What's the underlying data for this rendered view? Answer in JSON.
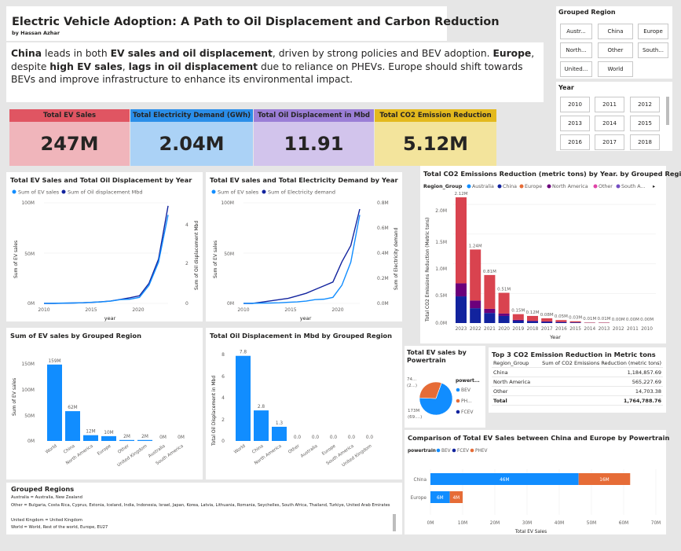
{
  "header": {
    "title": "Electric Vehicle Adoption: A Path to Oil Displacement and Carbon Reduction",
    "author": "by Hassan Azhar"
  },
  "description": {
    "p1": "China",
    "p2": " leads in both ",
    "p3": "EV sales and oil displacement",
    "p4": ", driven by strong policies and BEV adoption. ",
    "p5": "Europe",
    "p6": ", despite ",
    "p7": "high EV sales",
    "p8": ", ",
    "p9": "lags in oil displacement",
    "p10": " due to reliance on PHEVs. Europe should shift towards BEVs and improve infrastructure to enhance its environmental impact."
  },
  "filters": {
    "region": {
      "title": "Grouped Region",
      "options": [
        "Austr...",
        "China",
        "Europe",
        "North...",
        "Other",
        "South...",
        "United...",
        "World"
      ]
    },
    "year": {
      "title": "Year",
      "options": [
        "2010",
        "2011",
        "2012",
        "2013",
        "2014",
        "2015",
        "2016",
        "2017",
        "2018"
      ]
    }
  },
  "kpis": [
    {
      "label": "Total EV Sales",
      "value": "247M",
      "color": "#e05562",
      "bg": "#f0b5bb"
    },
    {
      "label": "Total Electricity Demand (GWh)",
      "value": "2.04M",
      "color": "#2b8ee8",
      "bg": "#abd2f6"
    },
    {
      "label": "Total Oil Displacement in Mbd",
      "value": "11.91",
      "color": "#9b7ed6",
      "bg": "#d2c4ec"
    },
    {
      "label": "Total CO2 Emission Reduction",
      "value": "5.12M",
      "color": "#e3b91e",
      "bg": "#f3e49c"
    }
  ],
  "colors": {
    "light": "#118dff",
    "dark": "#12239e",
    "orange": "#e66c37",
    "pink": "#d9434f",
    "purple": "#6b007b",
    "darkblue": "#12239e"
  },
  "chart_line1": {
    "title": "Total EV Sales and Total Oil Displacement by Year",
    "legend": [
      "Sum of EV sales",
      "Sum of Oil displacement Mbd"
    ],
    "xlabel": "year",
    "ylabel_left": "Sum of EV sales",
    "ylabel_right": "Sum of Oil displacement Mbd",
    "left_ticks": [
      "100M",
      "50M",
      "0M"
    ],
    "right_ticks": [
      "4",
      "2",
      "0"
    ],
    "x_ticks": [
      "2010",
      "2015",
      "2020"
    ]
  },
  "chart_line2": {
    "title": "Total EV sales and Total Electricity Demand by Year",
    "legend": [
      "Sum of EV sales",
      "Sum of Electricity demand"
    ],
    "xlabel": "year",
    "ylabel_left": "Sum of EV sales",
    "ylabel_right": "Sum of Electricity demand",
    "left_ticks": [
      "100M",
      "50M",
      "0M"
    ],
    "right_ticks": [
      "0.8M",
      "0.6M",
      "0.4M",
      "0.2M",
      "0.0M"
    ],
    "x_ticks": [
      "2010",
      "2015",
      "2020"
    ]
  },
  "chart_co2": {
    "title": "Total CO2 Emissions Reduction (metric tons) by Year. by Grouped Region",
    "legend_title": "Region_Group",
    "legend": [
      "Australia",
      "China",
      "Europe",
      "North America",
      "Other",
      "South A..."
    ],
    "ylabel": "Total CO2 Emissions Reduction (Metric tons)",
    "xlabel": "Year",
    "y_ticks": [
      "2.0M",
      "1.5M",
      "1.0M",
      "0.5M",
      "0.0M"
    ],
    "data_labels": [
      "2.12M",
      "1.24M",
      "0.81M",
      "0.51M",
      "0.15M",
      "0.12M",
      "0.08M",
      "0.05M",
      "0.03M",
      "0.01M",
      "0.01M",
      "0.00M",
      "0.00M",
      "0.00M"
    ]
  },
  "chart_region_sales": {
    "title": "Sum of EV sales by Grouped Region",
    "ylabel": "Sum of EV sales",
    "y_ticks": [
      "150M",
      "100M",
      "50M",
      "0M"
    ],
    "data_labels": [
      "159M",
      "62M",
      "12M",
      "10M",
      "2M",
      "2M",
      "0M",
      "0M"
    ]
  },
  "chart_region_oil": {
    "title": "Total Oil Displacement in Mbd by Grouped Region",
    "ylabel": "Total Oil Displacement in Mbd",
    "y_ticks": [
      "8",
      "6",
      "4",
      "2",
      "0"
    ],
    "data_labels": [
      "7.8",
      "2.8",
      "1.3",
      "0.0",
      "0.0",
      "0.0",
      "0.0",
      "0.0"
    ]
  },
  "chart_pie": {
    "title": "Total EV sales by Powertrain",
    "legend_title": "powert...",
    "legend": [
      "BEV",
      "PH...",
      "FCEV"
    ],
    "label_small": "74...",
    "label_small2": "(2...)",
    "label_big": "173M",
    "label_big2": "(69....)"
  },
  "top3": {
    "title": "Top 3 CO2 Emission Reduction in Metric tons",
    "col1": "Region_Group",
    "col2": "Sum of CO2 Emissions Reduction (metric tons)",
    "rows": [
      {
        "region": "China",
        "value": "1,184,857.69"
      },
      {
        "region": "North America",
        "value": "565,227.69"
      },
      {
        "region": "Other",
        "value": "14,703.38"
      }
    ],
    "total_label": "Total",
    "total_value": "1,764,788.76"
  },
  "chart_compare": {
    "title": "Comparison of Total EV Sales between China and Europe by Powertrain",
    "legend_title": "powertrain",
    "legend": [
      "BEV",
      "FCEV",
      "PHEV"
    ],
    "xlabel": "Total EV Sales",
    "x_ticks": [
      "0M",
      "10M",
      "20M",
      "30M",
      "40M",
      "50M",
      "60M",
      "70M"
    ]
  },
  "grouped_regions": {
    "title": "Grouped Regions",
    "lines": [
      "Australia = Australia, New Zealand",
      "Other = Bulgaria, Costa Rica, Cyprus, Estonia, Iceland, India, Indonesia, Israel, Japan, Korea, Latvia, Lithuania, Romania, Seychelles, South Africa, Thailand, Turkiye, United Arab Emirates",
      "United Kingdom = United Kingdom",
      "World = World, Rest of the world, Europe, EU27"
    ]
  },
  "chart_data": [
    {
      "type": "line",
      "title": "Total EV Sales and Total Oil Displacement by Year",
      "x": [
        2010,
        2011,
        2012,
        2013,
        2014,
        2015,
        2016,
        2017,
        2018,
        2019,
        2020,
        2021,
        2022,
        2023
      ],
      "series": [
        {
          "name": "Sum of EV sales",
          "axis": "left",
          "values": [
            0.01,
            0.1,
            0.3,
            0.4,
            0.6,
            1.1,
            1.5,
            2.3,
            3.8,
            4.2,
            6.0,
            18,
            41,
            88
          ]
        },
        {
          "name": "Sum of Oil displacement Mbd",
          "axis": "right",
          "values": [
            0.0,
            0.0,
            0.01,
            0.02,
            0.03,
            0.05,
            0.08,
            0.12,
            0.2,
            0.28,
            0.38,
            1.0,
            2.2,
            4.85
          ]
        }
      ],
      "xlabel": "year",
      "ylabel": "Sum of EV sales",
      "ylim": [
        0,
        100
      ],
      "y2lim": [
        0,
        5
      ]
    },
    {
      "type": "line",
      "title": "Total EV sales and Total Electricity Demand by Year",
      "x": [
        2010,
        2011,
        2012,
        2013,
        2014,
        2015,
        2016,
        2017,
        2018,
        2019,
        2020,
        2021,
        2022,
        2023
      ],
      "series": [
        {
          "name": "Sum of EV sales",
          "axis": "left",
          "values": [
            0.01,
            0.1,
            0.3,
            0.4,
            0.6,
            1.1,
            1.5,
            2.3,
            3.8,
            4.2,
            6.0,
            18,
            41,
            88
          ]
        },
        {
          "name": "Sum of Electricity demand",
          "axis": "right",
          "values": [
            0.0,
            0.0,
            0.01,
            0.02,
            0.03,
            0.04,
            0.06,
            0.08,
            0.11,
            0.14,
            0.17,
            0.33,
            0.46,
            0.75
          ]
        }
      ],
      "xlabel": "year",
      "ylabel": "Sum of EV sales",
      "ylim": [
        0,
        100
      ],
      "y2lim": [
        0,
        0.8
      ]
    },
    {
      "type": "bar",
      "stacked": true,
      "title": "Total CO2 Emissions Reduction (metric tons) by Year. by Grouped Region",
      "categories": [
        "2023",
        "2022",
        "2021",
        "2020",
        "2019",
        "2018",
        "2017",
        "2016",
        "2015",
        "2014",
        "2013",
        "2012",
        "2011",
        "2010"
      ],
      "totals": [
        2.12,
        1.24,
        0.81,
        0.51,
        0.15,
        0.12,
        0.08,
        0.05,
        0.03,
        0.01,
        0.01,
        0.0,
        0.0,
        0.0
      ],
      "series": [
        {
          "name": "China",
          "values": [
            0.45,
            0.25,
            0.17,
            0.12,
            0.04,
            0.03,
            0.02,
            0.015,
            0.01,
            0.003,
            0.003,
            0.0,
            0.0,
            0.0
          ]
        },
        {
          "name": "South A...",
          "values": [
            0.22,
            0.13,
            0.07,
            0.04,
            0.015,
            0.01,
            0.008,
            0.005,
            0.003,
            0.001,
            0.001,
            0.0,
            0.0,
            0.0
          ]
        },
        {
          "name": "Europe",
          "values": [
            1.45,
            0.86,
            0.57,
            0.35,
            0.095,
            0.08,
            0.052,
            0.03,
            0.017,
            0.006,
            0.006,
            0.0,
            0.0,
            0.0
          ]
        }
      ],
      "xlabel": "Year",
      "ylabel": "Total CO2 Emissions Reduction (Metric tons)",
      "ylim": [
        0,
        2.2
      ]
    },
    {
      "type": "bar",
      "title": "Sum of EV sales by Grouped Region",
      "categories": [
        "World",
        "China",
        "North America",
        "Europe",
        "Other",
        "United Kingdom",
        "Australia",
        "South America"
      ],
      "values": [
        159,
        62,
        12,
        10,
        2,
        2,
        0,
        0
      ],
      "ylabel": "Sum of EV sales",
      "ylim": [
        0,
        175
      ]
    },
    {
      "type": "bar",
      "title": "Total Oil Displacement in Mbd by Grouped Region",
      "categories": [
        "World",
        "China",
        "North America",
        "Other",
        "Australia",
        "Europe",
        "South America",
        "United Kingdom"
      ],
      "values": [
        7.8,
        2.8,
        1.3,
        0.0,
        0.0,
        0.0,
        0.0,
        0.0
      ],
      "ylabel": "Total Oil Displacement in Mbd",
      "ylim": [
        0,
        8.5
      ]
    },
    {
      "type": "pie",
      "title": "Total EV sales by Powertrain",
      "categories": [
        "BEV",
        "PH...",
        "FCEV"
      ],
      "values": [
        173,
        74,
        0.1
      ]
    },
    {
      "type": "bar",
      "orientation": "horizontal",
      "stacked": true,
      "title": "Comparison of Total EV Sales between China and Europe by Powertrain",
      "categories": [
        "China",
        "Europe"
      ],
      "series": [
        {
          "name": "BEV",
          "values": [
            46,
            6
          ]
        },
        {
          "name": "FCEV",
          "values": [
            0.02,
            0.01
          ]
        },
        {
          "name": "PHEV",
          "values": [
            16,
            4
          ]
        }
      ],
      "xlabel": "Total EV Sales",
      "xlim": [
        0,
        70
      ]
    }
  ]
}
